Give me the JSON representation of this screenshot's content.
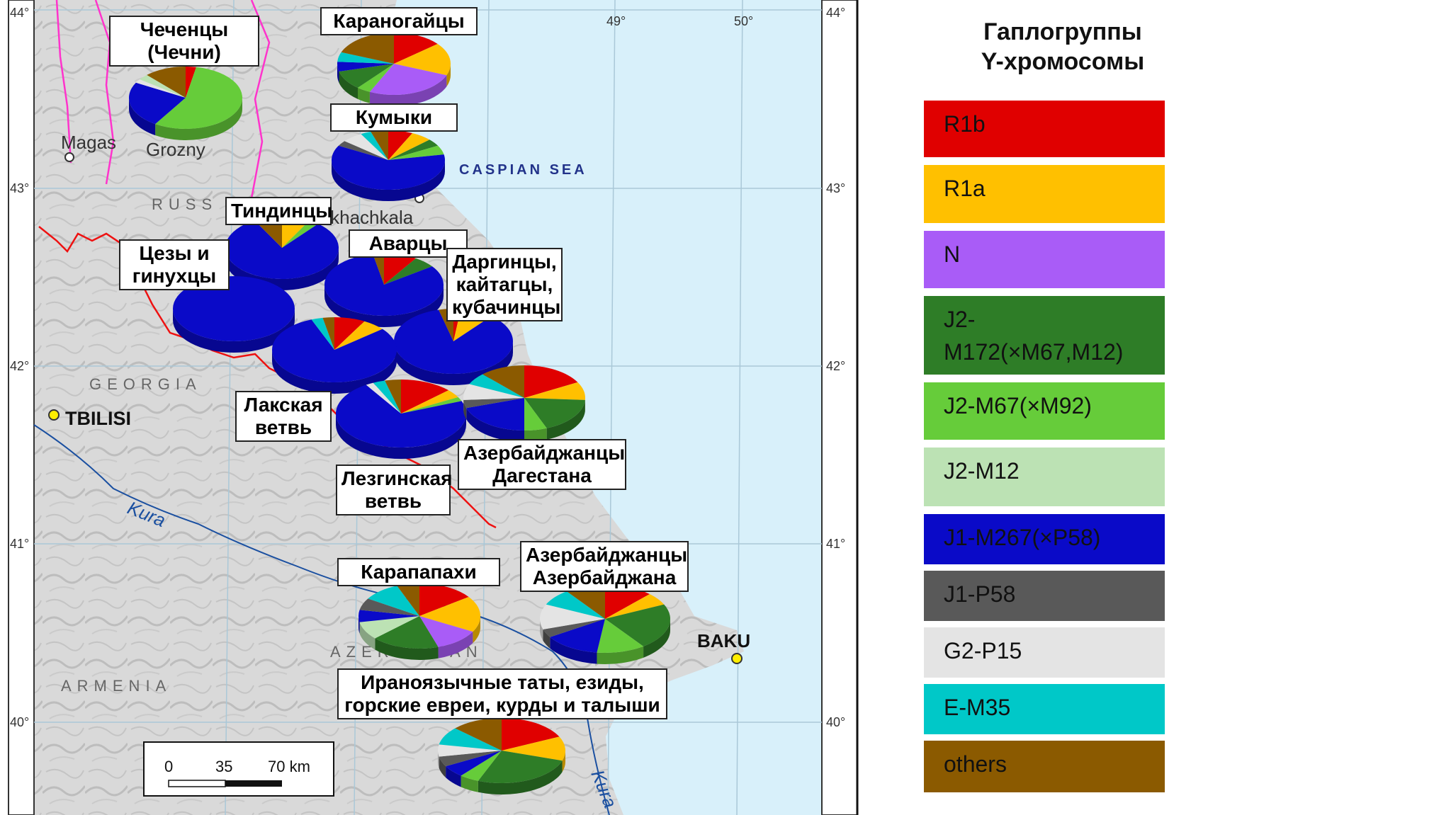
{
  "map": {
    "sea_label": "CASPIAN SEA",
    "cities": [
      {
        "name": "Magas"
      },
      {
        "name": "Grozny"
      },
      {
        "name": "Makhachkala"
      },
      {
        "name": "TBILISI"
      },
      {
        "name": "BAKU"
      }
    ],
    "countries": [
      "RUSS",
      "GEORGIA",
      "ARMENIA",
      "AZERBAIJAN"
    ],
    "rivers": [
      "Kura",
      "Kura"
    ],
    "lat_ticks": [
      "44°",
      "43°",
      "42°",
      "41°",
      "40°"
    ],
    "lon_ticks": [
      "49°",
      "50°"
    ],
    "scale_bar": {
      "labels": [
        "0",
        "35",
        "70 km"
      ]
    }
  },
  "populations": [
    {
      "label": "Чеченцы\n(Чечни)",
      "shares": [
        {
          "g": "R1b",
          "v": 3
        },
        {
          "g": "J2-M67(×M92)",
          "v": 56
        },
        {
          "g": "J1-M267(×P58)",
          "v": 24
        },
        {
          "g": "G2-P15",
          "v": 2
        },
        {
          "g": "J2-M12",
          "v": 3
        },
        {
          "g": "others",
          "v": 12
        }
      ]
    },
    {
      "label": "Караногайцы",
      "shares": [
        {
          "g": "R1b",
          "v": 14
        },
        {
          "g": "R1a",
          "v": 17
        },
        {
          "g": "N",
          "v": 26
        },
        {
          "g": "J2-M67(×M92)",
          "v": 4
        },
        {
          "g": "J2-M172(×M67,M12)",
          "v": 10
        },
        {
          "g": "J1-M267(×P58)",
          "v": 5
        },
        {
          "g": "E-M35",
          "v": 5
        },
        {
          "g": "others",
          "v": 19
        }
      ]
    },
    {
      "label": "Кумыки",
      "shares": [
        {
          "g": "R1b",
          "v": 7
        },
        {
          "g": "R1a",
          "v": 6
        },
        {
          "g": "J2-M172(×M67,M12)",
          "v": 4
        },
        {
          "g": "J2-M67(×M92)",
          "v": 5
        },
        {
          "g": "J1-M267(×P58)",
          "v": 61
        },
        {
          "g": "J1-P58",
          "v": 3
        },
        {
          "g": "G2-P15",
          "v": 6
        },
        {
          "g": "E-M35",
          "v": 3
        },
        {
          "g": "others",
          "v": 5
        }
      ]
    },
    {
      "label": "Тиндинцы",
      "shares": [
        {
          "g": "R1a",
          "v": 8
        },
        {
          "g": "J2-M67(×M92)",
          "v": 3
        },
        {
          "g": "J1-M267(×P58)",
          "v": 81
        },
        {
          "g": "others",
          "v": 8
        }
      ]
    },
    {
      "label": "Цезы и\nгинухцы",
      "shares": [
        {
          "g": "J1-M267(×P58)",
          "v": 100
        }
      ]
    },
    {
      "label": "Аварцы",
      "shares": [
        {
          "g": "R1b",
          "v": 9
        },
        {
          "g": "J2-M172(×M67,M12)",
          "v": 6
        },
        {
          "g": "J1-M267(×P58)",
          "v": 82
        },
        {
          "g": "others",
          "v": 3
        }
      ]
    },
    {
      "label": "Даргинцы,\nкайтагцы,\nкубачинцы",
      "shares": [
        {
          "g": "R1b",
          "v": 2
        },
        {
          "g": "R1a",
          "v": 9
        },
        {
          "g": "J1-M267(×P58)",
          "v": 85
        },
        {
          "g": "others",
          "v": 4
        }
      ]
    },
    {
      "label": "Лакская\nветвь",
      "shares": [
        {
          "g": "R1b",
          "v": 8
        },
        {
          "g": "R1a",
          "v": 6
        },
        {
          "g": "J1-M267(×P58)",
          "v": 80
        },
        {
          "g": "E-M35",
          "v": 3
        },
        {
          "g": "others",
          "v": 3
        }
      ]
    },
    {
      "label": "Лезгинская\nветвь",
      "shares": [
        {
          "g": "R1b",
          "v": 13
        },
        {
          "g": "R1a",
          "v": 4
        },
        {
          "g": "J2-M67(×M92)",
          "v": 2
        },
        {
          "g": "J1-M267(×P58)",
          "v": 72
        },
        {
          "g": "G2-P15",
          "v": 2
        },
        {
          "g": "E-M35",
          "v": 3
        },
        {
          "g": "others",
          "v": 4
        }
      ]
    },
    {
      "label": "Азербайджанцы\nДагестана",
      "shares": [
        {
          "g": "R1b",
          "v": 17
        },
        {
          "g": "R1a",
          "v": 9
        },
        {
          "g": "J2-M172(×M67,M12)",
          "v": 18
        },
        {
          "g": "J2-M67(×M92)",
          "v": 6
        },
        {
          "g": "J1-M267(×P58)",
          "v": 20
        },
        {
          "g": "J1-P58",
          "v": 4
        },
        {
          "g": "G2-P15",
          "v": 8
        },
        {
          "g": "E-M35",
          "v": 6
        },
        {
          "g": "others",
          "v": 12
        }
      ]
    },
    {
      "label": "Карапапахи",
      "shares": [
        {
          "g": "R1b",
          "v": 15
        },
        {
          "g": "R1a",
          "v": 18
        },
        {
          "g": "N",
          "v": 12
        },
        {
          "g": "J2-M172(×M67,M12)",
          "v": 18
        },
        {
          "g": "J2-M12",
          "v": 9
        },
        {
          "g": "J1-M267(×P58)",
          "v": 6
        },
        {
          "g": "J1-P58",
          "v": 6
        },
        {
          "g": "E-M35",
          "v": 10
        },
        {
          "g": "others",
          "v": 6
        }
      ]
    },
    {
      "label": "Азербайджанцы\nАзербайджана",
      "shares": [
        {
          "g": "R1b",
          "v": 12
        },
        {
          "g": "R1a",
          "v": 6
        },
        {
          "g": "J2-M172(×M67,M12)",
          "v": 22
        },
        {
          "g": "J2-M67(×M92)",
          "v": 12
        },
        {
          "g": "J1-M267(×P58)",
          "v": 14
        },
        {
          "g": "J1-P58",
          "v": 4
        },
        {
          "g": "G2-P15",
          "v": 12
        },
        {
          "g": "E-M35",
          "v": 8
        },
        {
          "g": "others",
          "v": 10
        }
      ]
    },
    {
      "label": "Ираноязычные таты, езиды,\nгорские евреи, курды и талыши",
      "shares": [
        {
          "g": "R1b",
          "v": 18
        },
        {
          "g": "R1a",
          "v": 12
        },
        {
          "g": "J2-M172(×M67,M12)",
          "v": 26
        },
        {
          "g": "J2-M67(×M92)",
          "v": 5
        },
        {
          "g": "J1-M267(×P58)",
          "v": 6
        },
        {
          "g": "J1-P58",
          "v": 5
        },
        {
          "g": "G2-P15",
          "v": 6
        },
        {
          "g": "E-M35",
          "v": 9
        },
        {
          "g": "others",
          "v": 13
        }
      ]
    }
  ],
  "legend": {
    "title": "Гаплогруппы\nY-хромосомы",
    "items": [
      {
        "label": "R1b",
        "color": "#e00000"
      },
      {
        "label": "R1a",
        "color": "#ffc000"
      },
      {
        "label": "N",
        "color": "#a95cf7"
      },
      {
        "label": "J2-\nM172(×M67,M12)",
        "color": "#2e7d27"
      },
      {
        "label": "J2-M67(×M92)",
        "color": "#66cc3a"
      },
      {
        "label": "J2-M12",
        "color": "#bce2b4"
      },
      {
        "label": "J1-M267(×P58)",
        "color": "#0a0ac8"
      },
      {
        "label": "J1-P58",
        "color": "#595959"
      },
      {
        "label": "G2-P15",
        "color": "#e4e4e4"
      },
      {
        "label": "E-M35",
        "color": "#00c8c8"
      },
      {
        "label": "others",
        "color": "#8b5a00"
      }
    ]
  }
}
